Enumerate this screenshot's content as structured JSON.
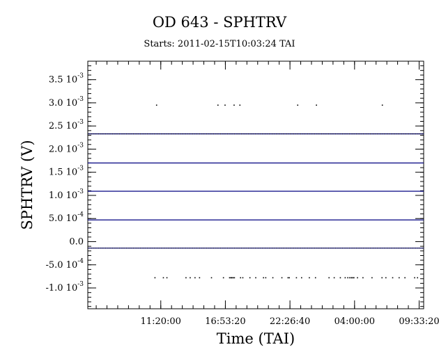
{
  "chart_data": {
    "type": "scatter",
    "title": "OD 643 - SPHTRV",
    "subtitle": "Starts: 2011-02-15T10:03:24 TAI",
    "xlabel": "Time (TAI)",
    "ylabel": "SPHTRV (V)",
    "x_ticks": [
      {
        "value": 2.6,
        "label": "11:20:00"
      },
      {
        "value": 22.6,
        "label": "16:53:20"
      },
      {
        "value": 42.6,
        "label": "22:26:40"
      },
      {
        "value": 62.6,
        "label": "04:00:00"
      },
      {
        "value": 82.6,
        "label": "09:33:20"
      }
    ],
    "x_minor_step": 3.333,
    "xlim": [
      -20.0,
      84.0
    ],
    "ylim": [
      -0.00145,
      0.0039
    ],
    "y_ticks": [
      {
        "value": 0.0035,
        "mant": "3.5 10",
        "exp": "-3"
      },
      {
        "value": 0.003,
        "mant": "3.0 10",
        "exp": "-3"
      },
      {
        "value": 0.0025,
        "mant": "2.5 10",
        "exp": "-3"
      },
      {
        "value": 0.002,
        "mant": "2.0 10",
        "exp": "-3"
      },
      {
        "value": 0.0015,
        "mant": "1.5 10",
        "exp": "-3"
      },
      {
        "value": 0.001,
        "mant": "1.0 10",
        "exp": "-3"
      },
      {
        "value": 0.0005,
        "mant": "5.0 10",
        "exp": "-4"
      },
      {
        "value": 0.0,
        "mant": "0.0",
        "exp": ""
      },
      {
        "value": -0.0005,
        "mant": "-5.0 10",
        "exp": "-4"
      },
      {
        "value": -0.001,
        "mant": "-1.0 10",
        "exp": "-3"
      }
    ],
    "y_minor_step": 0.0001,
    "levels": [
      {
        "value": 0.00233,
        "color": "#000080",
        "dense": true
      },
      {
        "value": 0.0017,
        "color": "#000080",
        "dense": false
      },
      {
        "value": 0.00109,
        "color": "#000080",
        "dense": false
      },
      {
        "value": 0.00047,
        "color": "#000080",
        "dense": false
      },
      {
        "value": -0.00014,
        "color": "#000080",
        "dense": true
      }
    ],
    "points": [
      {
        "x": 1.3,
        "y": 0.00295
      },
      {
        "x": 20.3,
        "y": 0.00295
      },
      {
        "x": 22.5,
        "y": 0.00295
      },
      {
        "x": 25.3,
        "y": 0.00295
      },
      {
        "x": 27.1,
        "y": 0.00295
      },
      {
        "x": 45.0,
        "y": 0.00295
      },
      {
        "x": 50.8,
        "y": 0.00295
      },
      {
        "x": 71.2,
        "y": 0.00295
      },
      {
        "x": 0.8,
        "y": -0.00078
      },
      {
        "x": 3.4,
        "y": -0.00078
      },
      {
        "x": 4.5,
        "y": -0.00078
      },
      {
        "x": 10.4,
        "y": -0.00078
      },
      {
        "x": 11.7,
        "y": -0.00078
      },
      {
        "x": 13.2,
        "y": -0.00078
      },
      {
        "x": 14.6,
        "y": -0.00078
      },
      {
        "x": 18.3,
        "y": -0.00078
      },
      {
        "x": 22.0,
        "y": -0.00078
      },
      {
        "x": 23.9,
        "y": -0.00078
      },
      {
        "x": 24.3,
        "y": -0.00078
      },
      {
        "x": 24.6,
        "y": -0.00078
      },
      {
        "x": 25.0,
        "y": -0.00078
      },
      {
        "x": 25.4,
        "y": -0.00078
      },
      {
        "x": 27.3,
        "y": -0.00078
      },
      {
        "x": 28.0,
        "y": -0.00078
      },
      {
        "x": 30.2,
        "y": -0.00078
      },
      {
        "x": 32.0,
        "y": -0.00078
      },
      {
        "x": 34.4,
        "y": -0.00078
      },
      {
        "x": 35.1,
        "y": -0.00078
      },
      {
        "x": 37.3,
        "y": -0.00078
      },
      {
        "x": 40.1,
        "y": -0.00078
      },
      {
        "x": 42.0,
        "y": -0.00078
      },
      {
        "x": 42.4,
        "y": -0.00078
      },
      {
        "x": 44.6,
        "y": -0.00078
      },
      {
        "x": 46.2,
        "y": -0.00078
      },
      {
        "x": 48.6,
        "y": -0.00078
      },
      {
        "x": 50.5,
        "y": -0.00078
      },
      {
        "x": 54.7,
        "y": -0.00078
      },
      {
        "x": 56.3,
        "y": -0.00078
      },
      {
        "x": 58.2,
        "y": -0.00078
      },
      {
        "x": 59.7,
        "y": -0.00078
      },
      {
        "x": 60.5,
        "y": -0.00078
      },
      {
        "x": 61.1,
        "y": -0.00078
      },
      {
        "x": 61.6,
        "y": -0.00078
      },
      {
        "x": 62.0,
        "y": -0.00078
      },
      {
        "x": 62.4,
        "y": -0.00078
      },
      {
        "x": 63.5,
        "y": -0.00078
      },
      {
        "x": 65.2,
        "y": -0.00078
      },
      {
        "x": 68.0,
        "y": -0.00078
      },
      {
        "x": 71.1,
        "y": -0.00078
      },
      {
        "x": 72.3,
        "y": -0.00078
      },
      {
        "x": 74.4,
        "y": -0.00078
      },
      {
        "x": 76.4,
        "y": -0.00078
      },
      {
        "x": 78.2,
        "y": -0.00078
      },
      {
        "x": 81.2,
        "y": -0.00078
      },
      {
        "x": 82.1,
        "y": -0.00078
      }
    ]
  }
}
